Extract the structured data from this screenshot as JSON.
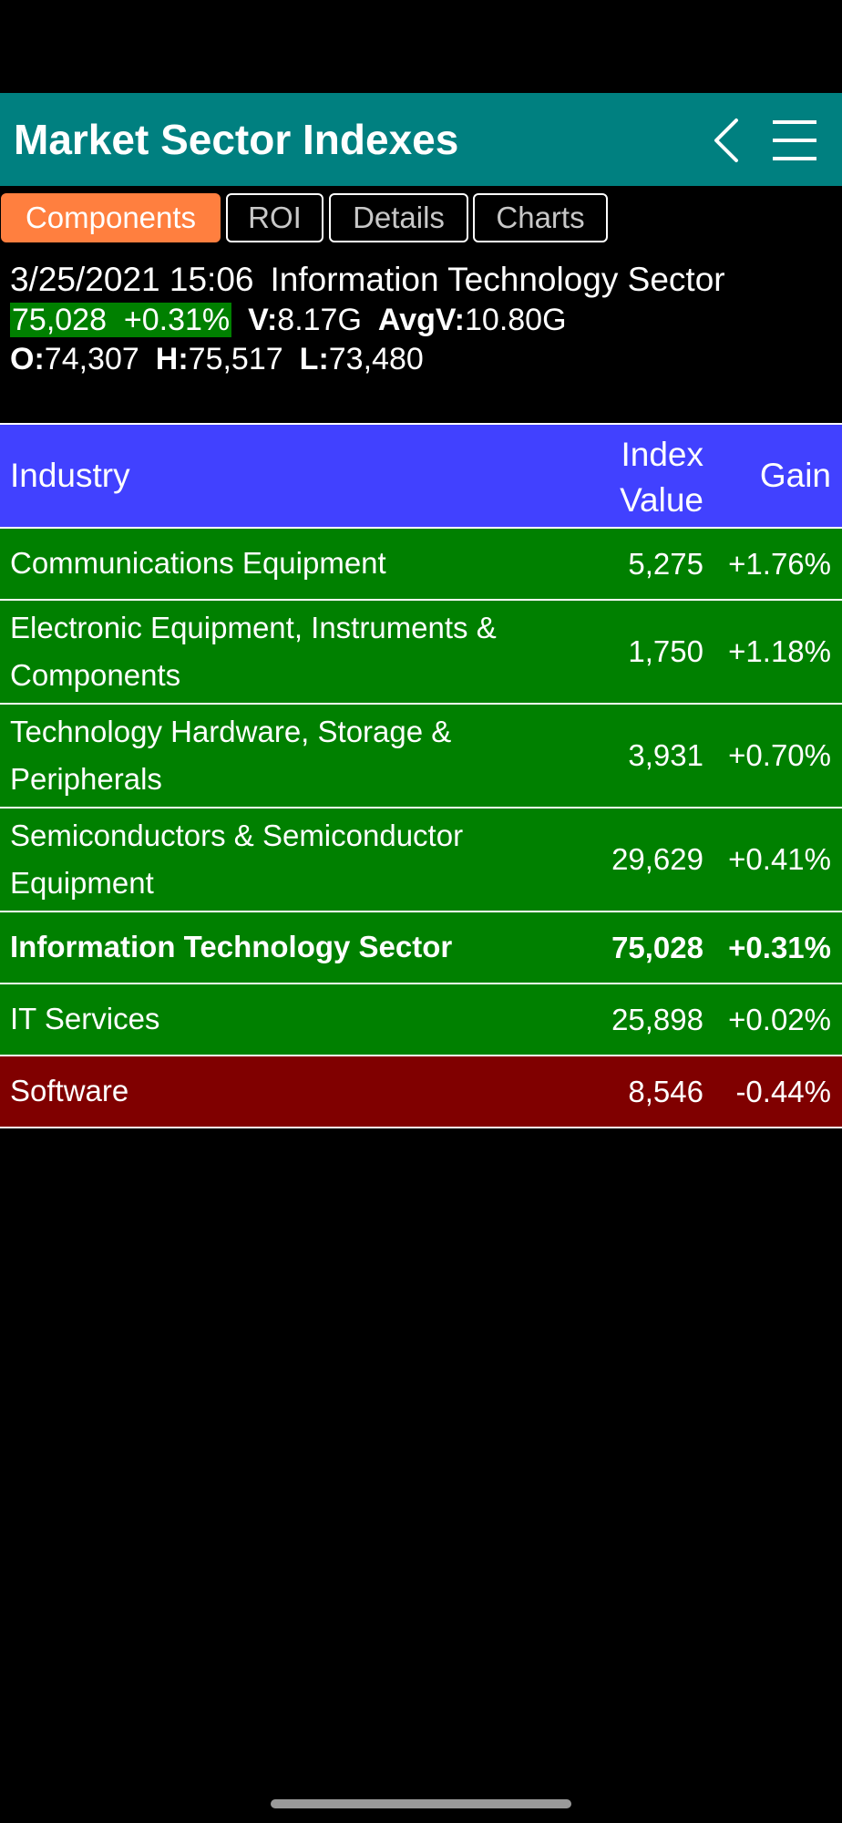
{
  "header": {
    "title": "Market Sector Indexes",
    "back_icon": "chevron-left-icon",
    "menu_icon": "hamburger-menu-icon"
  },
  "tabs": [
    {
      "label": "Components",
      "active": true
    },
    {
      "label": "ROI",
      "active": false
    },
    {
      "label": "Details",
      "active": false
    },
    {
      "label": "Charts",
      "active": false
    }
  ],
  "quote": {
    "datetime": "3/25/2021 15:06",
    "sector": "Information Technology Sector",
    "price_change": "75,028  +0.31%",
    "volume_label": "V:",
    "volume": "8.17G",
    "avg_volume_label": "AvgV:",
    "avg_volume": "10.80G",
    "open_label": "O:",
    "open": "74,307",
    "high_label": "H:",
    "high": "75,517",
    "low_label": "L:",
    "low": "73,480"
  },
  "table": {
    "headers": {
      "industry": "Industry",
      "index_value": "Index Value",
      "gain": "Gain"
    },
    "rows": [
      {
        "industry": "Communications Equipment",
        "index_value": "5,275",
        "gain": "+1.76%"
      },
      {
        "industry": "Electronic Equipment, Instruments & Components",
        "index_value": "1,750",
        "gain": "+1.18%"
      },
      {
        "industry": "Technology Hardware, Storage & Peripherals",
        "index_value": "3,931",
        "gain": "+0.70%"
      },
      {
        "industry": "Semiconductors & Semiconductor Equipment",
        "index_value": "29,629",
        "gain": "+0.41%"
      },
      {
        "industry": "Information Technology Sector",
        "index_value": "75,028",
        "gain": "+0.31%"
      },
      {
        "industry": "IT Services",
        "index_value": "25,898",
        "gain": "+0.02%"
      },
      {
        "industry": "Software",
        "index_value": "8,546",
        "gain": "-0.44%"
      }
    ]
  },
  "colors": {
    "header_bg": "#008080",
    "tab_active": "#ff7f3f",
    "table_header_bg": "#4141ff",
    "gain_bg": "#008000",
    "loss_bg": "#800000"
  }
}
